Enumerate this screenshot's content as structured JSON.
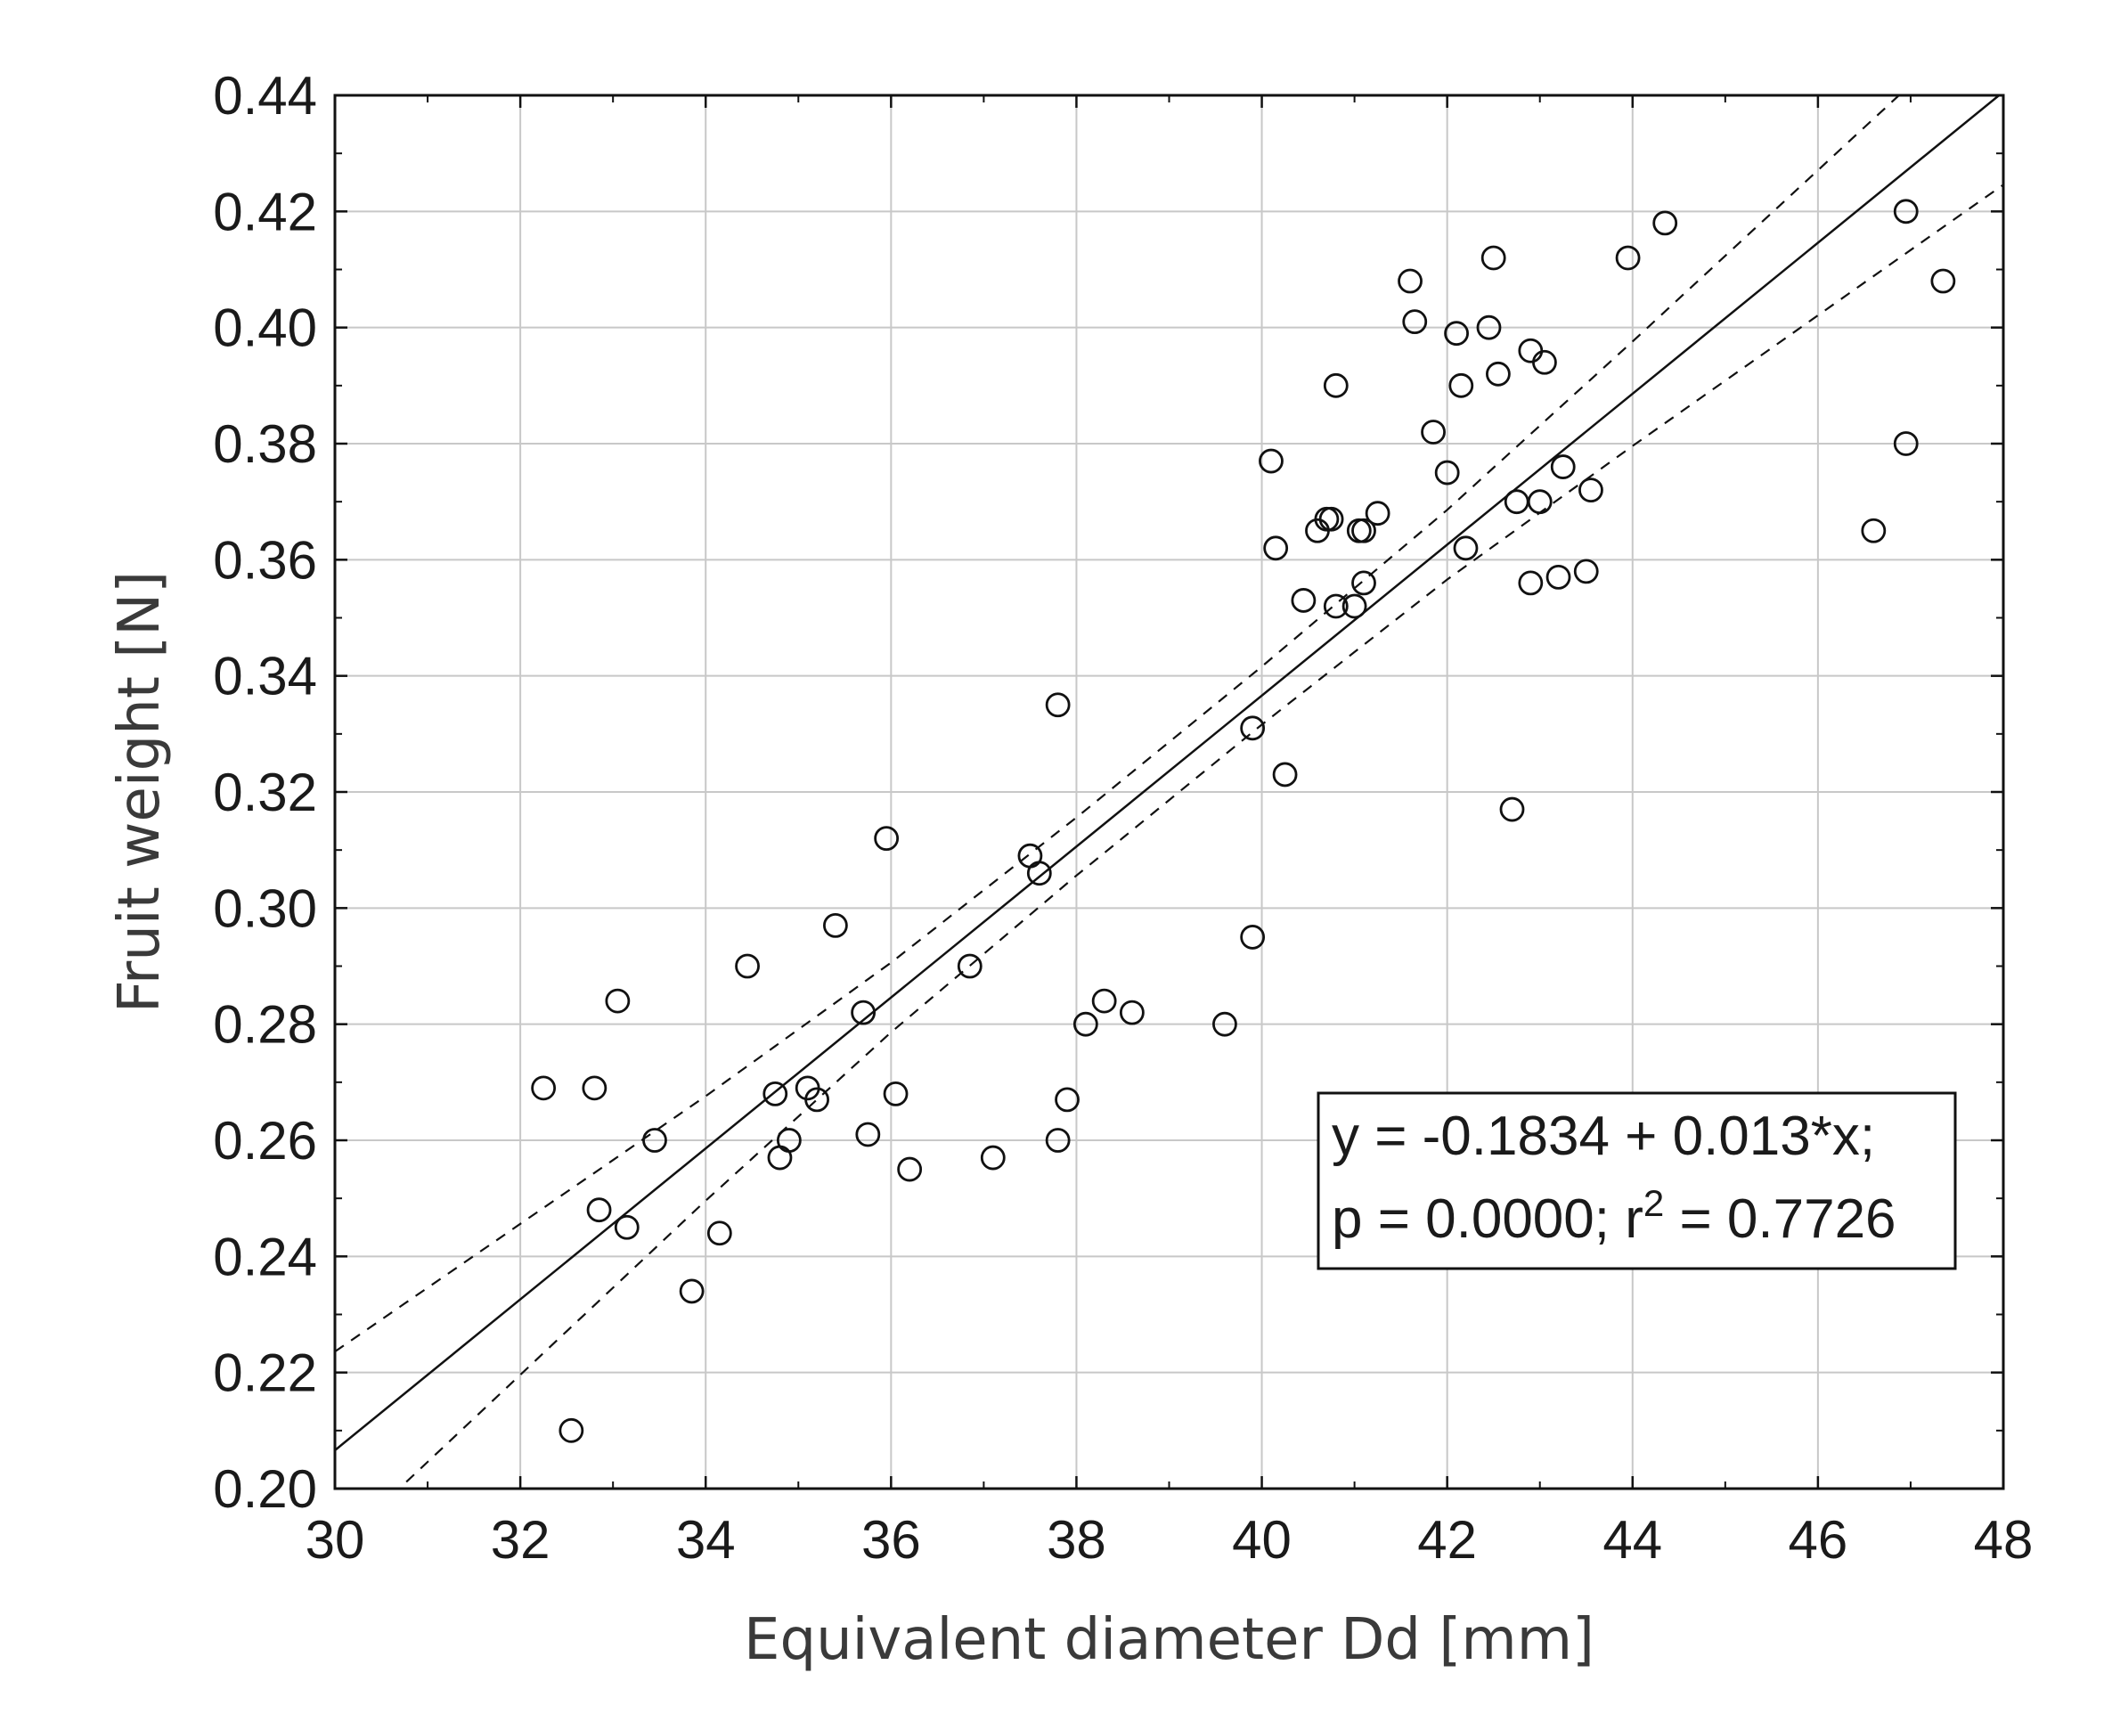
{
  "chart_data": {
    "type": "scatter",
    "title": "",
    "xlabel": "Equivalent diameter Dd  [mm]",
    "ylabel": "Fruit weight [N]",
    "xlim": [
      30,
      48
    ],
    "ylim": [
      0.2,
      0.44
    ],
    "x_ticks": [
      30,
      32,
      34,
      36,
      38,
      40,
      42,
      44,
      46,
      48
    ],
    "y_ticks": [
      0.2,
      0.22,
      0.24,
      0.26,
      0.28,
      0.3,
      0.32,
      0.34,
      0.36,
      0.38,
      0.4,
      0.42,
      0.44
    ],
    "x_tick_labels": [
      "30",
      "32",
      "34",
      "36",
      "38",
      "40",
      "42",
      "44",
      "46",
      "48"
    ],
    "y_tick_labels": [
      "0.20",
      "0.22",
      "0.24",
      "0.26",
      "0.28",
      "0.30",
      "0.32",
      "0.34",
      "0.36",
      "0.38",
      "0.40",
      "0.42",
      "0.44"
    ],
    "grid": true,
    "marker": "open-circle",
    "points": [
      [
        32.25,
        0.269
      ],
      [
        32.55,
        0.21
      ],
      [
        32.8,
        0.269
      ],
      [
        32.85,
        0.248
      ],
      [
        33.05,
        0.284
      ],
      [
        33.15,
        0.245
      ],
      [
        33.45,
        0.26
      ],
      [
        33.85,
        0.234
      ],
      [
        34.15,
        0.244
      ],
      [
        34.45,
        0.29
      ],
      [
        34.75,
        0.268
      ],
      [
        34.8,
        0.257
      ],
      [
        34.9,
        0.26
      ],
      [
        35.1,
        0.269
      ],
      [
        35.2,
        0.267
      ],
      [
        35.4,
        0.297
      ],
      [
        35.7,
        0.282
      ],
      [
        35.75,
        0.261
      ],
      [
        35.95,
        0.312
      ],
      [
        36.05,
        0.268
      ],
      [
        36.2,
        0.255
      ],
      [
        36.85,
        0.29
      ],
      [
        37.1,
        0.257
      ],
      [
        37.5,
        0.309
      ],
      [
        37.6,
        0.306
      ],
      [
        37.8,
        0.335
      ],
      [
        37.8,
        0.26
      ],
      [
        37.9,
        0.267
      ],
      [
        38.1,
        0.28
      ],
      [
        38.3,
        0.284
      ],
      [
        38.6,
        0.282
      ],
      [
        39.6,
        0.28
      ],
      [
        39.9,
        0.295
      ],
      [
        39.9,
        0.331
      ],
      [
        40.1,
        0.377
      ],
      [
        40.15,
        0.362
      ],
      [
        40.25,
        0.323
      ],
      [
        40.45,
        0.353
      ],
      [
        40.6,
        0.365
      ],
      [
        40.7,
        0.367
      ],
      [
        40.75,
        0.367
      ],
      [
        40.8,
        0.352
      ],
      [
        40.8,
        0.39
      ],
      [
        41.0,
        0.352
      ],
      [
        41.05,
        0.365
      ],
      [
        41.1,
        0.365
      ],
      [
        41.1,
        0.356
      ],
      [
        41.25,
        0.368
      ],
      [
        41.6,
        0.408
      ],
      [
        41.65,
        0.401
      ],
      [
        41.85,
        0.382
      ],
      [
        42.0,
        0.375
      ],
      [
        42.1,
        0.399
      ],
      [
        42.15,
        0.39
      ],
      [
        42.2,
        0.362
      ],
      [
        42.45,
        0.4
      ],
      [
        42.5,
        0.412
      ],
      [
        42.55,
        0.392
      ],
      [
        42.7,
        0.317
      ],
      [
        42.75,
        0.37
      ],
      [
        42.9,
        0.356
      ],
      [
        42.9,
        0.396
      ],
      [
        43.0,
        0.37
      ],
      [
        43.05,
        0.394
      ],
      [
        43.2,
        0.357
      ],
      [
        43.25,
        0.376
      ],
      [
        43.5,
        0.358
      ],
      [
        43.55,
        0.372
      ],
      [
        43.95,
        0.412
      ],
      [
        44.35,
        0.418
      ],
      [
        46.6,
        0.365
      ],
      [
        46.95,
        0.42
      ],
      [
        46.95,
        0.38
      ],
      [
        47.35,
        0.408
      ]
    ],
    "regression": {
      "intercept": -0.1834,
      "slope": 0.013,
      "line_x_range": [
        30,
        48
      ],
      "confidence_band_x_range": [
        30,
        48
      ],
      "confidence_band_half_width": [
        [
          30,
          0.017
        ],
        [
          34,
          0.009
        ],
        [
          36,
          0.006
        ],
        [
          38,
          0.005
        ],
        [
          40,
          0.005
        ],
        [
          42,
          0.006
        ],
        [
          44,
          0.009
        ],
        [
          48,
          0.016
        ]
      ]
    },
    "annotation": {
      "line1": "y = -0.1834 + 0.013*x;",
      "line2_prefix": "p = 0.0000; r",
      "line2_sup": "2",
      "line2_suffix": " = 0.7726"
    }
  }
}
